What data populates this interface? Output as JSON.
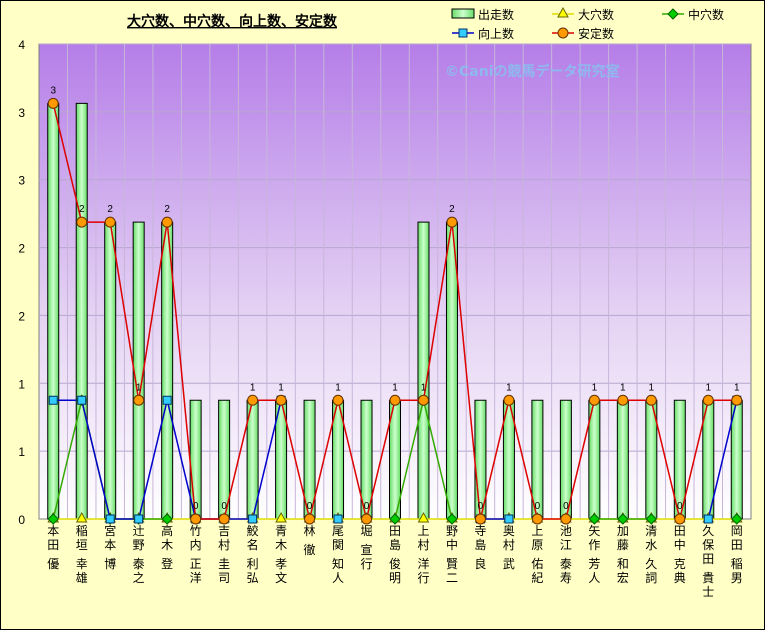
{
  "chart_data": {
    "type": "bar",
    "title": "大穴数、中穴数、向上数、安定数",
    "watermark": "©Caniの競馬データ研究室",
    "ylim": [
      0,
      4
    ],
    "yticks": [
      "0",
      "1",
      "1",
      "2",
      "2",
      "3",
      "3",
      "4"
    ],
    "legend_position": "top-right",
    "categories": [
      "本田 優",
      "稲垣 幸雄",
      "宮本 博",
      "辻野 泰之",
      "高木 登",
      "竹内 正洋",
      "吉村 圭司",
      "鮫名 利弘",
      "青木 孝文",
      "林 徹",
      "尾関 知人",
      "堀 宣行",
      "田島 俊明",
      "上村 洋行",
      "野中 賢二",
      "寺島 良",
      "奥村 武",
      "上原 佑紀",
      "池江 泰寿",
      "矢作 芳人",
      "加藤 和宏",
      "清水 久詞",
      "田中 克典",
      "久保田 貴士",
      "岡田 稲男"
    ],
    "series": [
      {
        "name": "出走数",
        "kind": "bar",
        "color": "#aaffaa",
        "values": [
          3.5,
          3.5,
          2.5,
          2.5,
          2.5,
          1,
          1,
          1,
          1,
          1,
          1,
          1,
          1,
          2.5,
          2.5,
          1,
          1,
          1,
          1,
          1,
          1,
          1,
          1,
          1,
          1
        ]
      },
      {
        "name": "大穴数",
        "kind": "line",
        "color": "#ffff00",
        "line_color": "#dddd00",
        "marker": "triangle",
        "values": [
          0,
          0,
          0,
          0,
          0,
          0,
          0,
          0,
          0,
          0,
          0,
          0,
          0,
          0,
          0,
          0,
          0,
          0,
          0,
          0,
          0,
          0,
          0,
          0,
          0
        ]
      },
      {
        "name": "中穴数",
        "kind": "line",
        "color": "#00cc00",
        "line_color": "#33aa00",
        "marker": "diamond",
        "values": [
          0,
          1,
          0,
          0,
          0,
          null,
          null,
          null,
          null,
          null,
          null,
          null,
          0,
          1,
          0,
          null,
          null,
          null,
          null,
          0,
          0,
          0,
          null,
          null,
          0
        ]
      },
      {
        "name": "向上数",
        "kind": "line",
        "color": "#33ccff",
        "line_color": "#0000cc",
        "marker": "square",
        "values": [
          1,
          1,
          0,
          0,
          1,
          0,
          0,
          0,
          1,
          null,
          0,
          null,
          null,
          null,
          null,
          0,
          0,
          null,
          null,
          null,
          null,
          null,
          null,
          0,
          1
        ]
      },
      {
        "name": "安定数",
        "kind": "line",
        "color": "#ff9900",
        "line_color": "#dd0000",
        "marker": "circle",
        "values": [
          3.5,
          2.5,
          2.5,
          1,
          2.5,
          0,
          0,
          1,
          1,
          0,
          1,
          0,
          1,
          1,
          2.5,
          0,
          1,
          0,
          0,
          1,
          1,
          1,
          0,
          1,
          1
        ]
      }
    ],
    "data_labels": [
      "3",
      "2",
      "2",
      "1",
      "2",
      "0",
      "0",
      "1",
      "1",
      "0",
      "1",
      "0",
      "1",
      "1",
      "2",
      "0",
      "1",
      "0",
      "0",
      "1",
      "1",
      "1",
      "0",
      "1",
      "1"
    ]
  }
}
